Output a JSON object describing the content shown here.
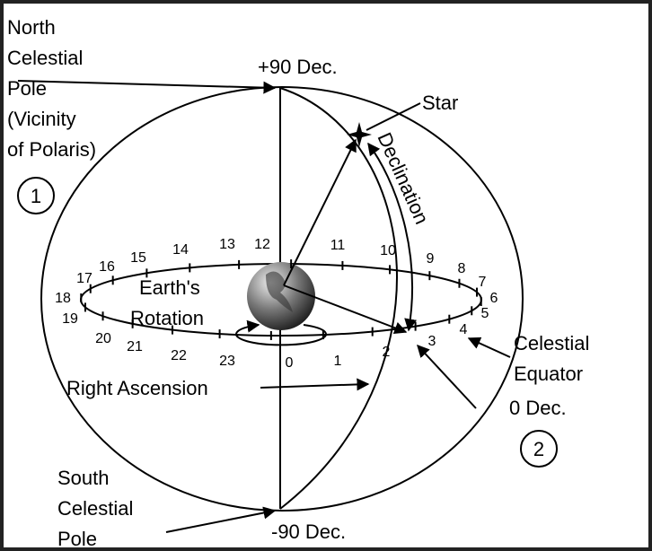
{
  "north_pole_label": [
    "North",
    "Celestial",
    "Pole",
    "(Vicinity",
    "of Polaris)"
  ],
  "marker_1": "1",
  "plus90_label": "+90  Dec.",
  "star_label": "Star",
  "declination_label": "Declination",
  "hour_labels": [
    "0",
    "1",
    "2",
    "3",
    "4",
    "5",
    "6",
    "7",
    "8",
    "9",
    "10",
    "11",
    "12",
    "13",
    "14",
    "15",
    "16",
    "17",
    "18",
    "19",
    "20",
    "21",
    "22",
    "23"
  ],
  "earth_label": [
    "Earth's",
    "Rotation"
  ],
  "right_ascension_label": "Right Ascension",
  "equator_label": [
    "Celestial",
    "Equator"
  ],
  "zero_dec_label": "0  Dec.",
  "marker_2": "2",
  "south_pole_label": [
    "South",
    "Celestial",
    "Pole"
  ],
  "minus90_label": "-90  Dec."
}
